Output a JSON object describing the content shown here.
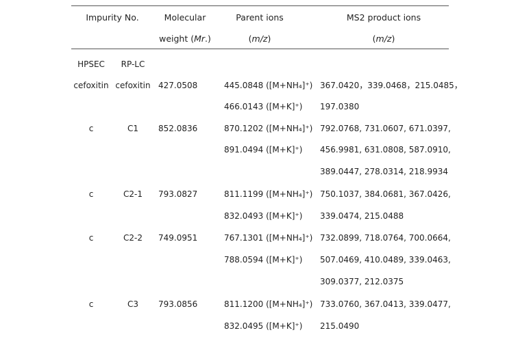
{
  "table": {
    "headers": {
      "impurity_no": "Impurity No.",
      "mol_weight_line1": "Molecular",
      "mol_weight_line2_a": "weight (",
      "mol_weight_line2_b": "Mr",
      "mol_weight_line2_c": ".)",
      "parent_ions": "Parent ions",
      "parent_ions_unit_a": "(",
      "parent_ions_unit_b": "m/z",
      "parent_ions_unit_c": ")",
      "ms2": "MS2 product ions",
      "ms2_unit_a": "(",
      "ms2_unit_b": "m/z",
      "ms2_unit_c": ")"
    },
    "subheaders": {
      "hpsec": "HPSEC",
      "rplc": "RP-LC"
    },
    "rows": [
      {
        "hpsec": "cefoxitin",
        "rplc": "cefoxitin",
        "mw": "427.0508",
        "parent": [
          "445.0848 ([M+NH₄]⁺)",
          "466.0143 ([M+K]⁺)"
        ],
        "ms2": [
          "367.0420，339.0468，215.0485，",
          "197.0380"
        ]
      },
      {
        "hpsec": "c",
        "rplc": "C1",
        "mw": "852.0836",
        "parent": [
          "870.1202 ([M+NH₄]⁺)",
          "891.0494 ([M+K]⁺)"
        ],
        "ms2": [
          "792.0768, 731.0607, 671.0397,",
          "456.9981, 631.0808, 587.0910,",
          "389.0447, 278.0314, 218.9934"
        ]
      },
      {
        "hpsec": "c",
        "rplc": "C2-1",
        "mw": "793.0827",
        "parent": [
          "811.1199 ([M+NH₄]⁺)",
          "832.0493 ([M+K]⁺)"
        ],
        "ms2": [
          "750.1037, 384.0681, 367.0426,",
          "339.0474, 215.0488"
        ]
      },
      {
        "hpsec": "c",
        "rplc": "C2-2",
        "mw": "749.0951",
        "parent": [
          "767.1301 ([M+NH₄]⁺)",
          "788.0594 ([M+K]⁺)"
        ],
        "ms2": [
          "732.0899, 718.0764, 700.0664,",
          "507.0469, 410.0489, 339.0463,",
          "309.0377, 212.0375"
        ]
      },
      {
        "hpsec": "c",
        "rplc": "C3",
        "mw": "793.0856",
        "parent": [
          "811.1200 ([M+NH₄]⁺)",
          "832.0495 ([M+K]⁺)"
        ],
        "ms2": [
          "733.0760, 367.0413, 339.0477,",
          "215.0490"
        ]
      }
    ]
  }
}
